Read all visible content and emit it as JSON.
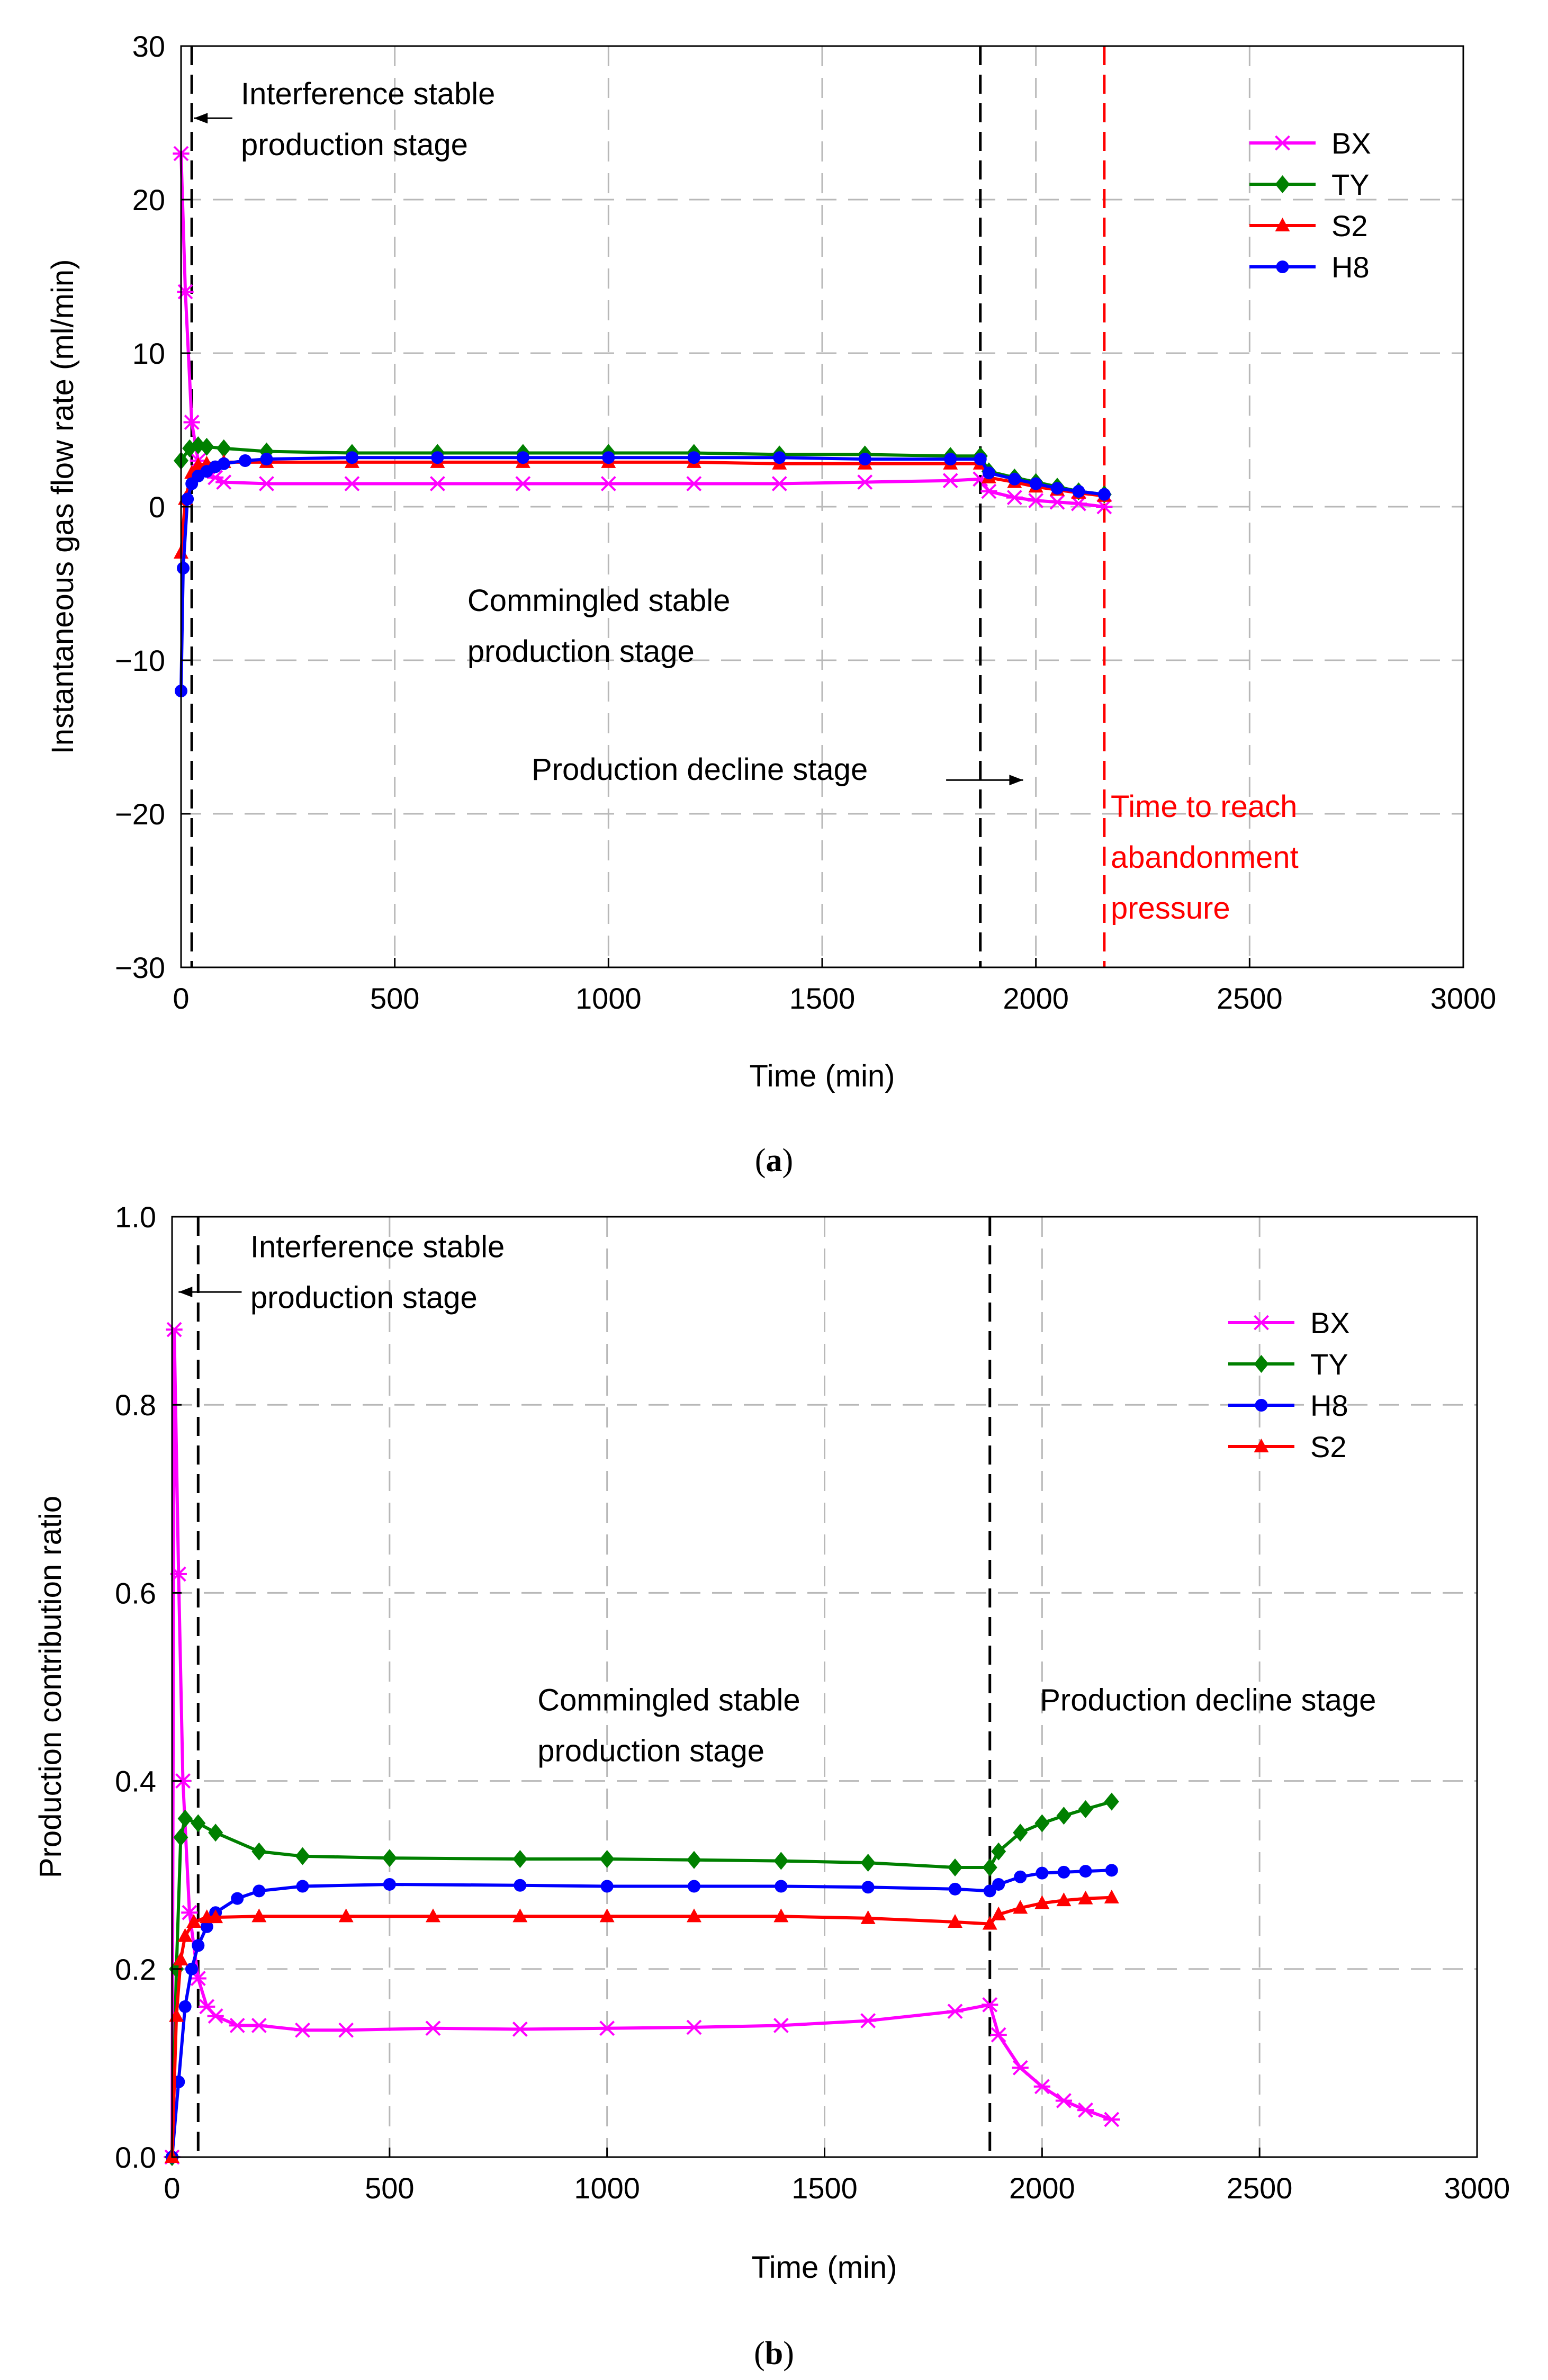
{
  "chart_data": [
    {
      "id": "a",
      "type": "line",
      "caption_letter": "a",
      "title": "",
      "xlabel": "Time (min)",
      "ylabel": "Instantaneous gas flow rate (ml/min)",
      "xlim": [
        0,
        3000
      ],
      "ylim": [
        -30,
        30
      ],
      "xticks": [
        0,
        500,
        1000,
        1500,
        2000,
        2500,
        3000
      ],
      "yticks": [
        -30,
        -20,
        -10,
        0,
        10,
        20,
        30
      ],
      "xtick_labels": [
        "0",
        "500",
        "1000",
        "1500",
        "2000",
        "2500",
        "3000"
      ],
      "ytick_labels": [
        "−30",
        "−20",
        "−10",
        "0",
        "10",
        "20",
        "30"
      ],
      "grid": true,
      "legend_position": "top-right",
      "series": [
        {
          "name": "BX",
          "color": "#ff00ff",
          "marker": "x",
          "x": [
            0,
            10,
            25,
            40,
            60,
            80,
            100,
            200,
            400,
            600,
            800,
            1000,
            1200,
            1400,
            1600,
            1800,
            1870,
            1890,
            1950,
            2000,
            2050,
            2100,
            2160
          ],
          "y": [
            23,
            14,
            5.5,
            3.0,
            2.2,
            1.9,
            1.6,
            1.5,
            1.5,
            1.5,
            1.5,
            1.5,
            1.5,
            1.5,
            1.6,
            1.7,
            1.8,
            1.0,
            0.6,
            0.4,
            0.3,
            0.2,
            0.0
          ]
        },
        {
          "name": "TY",
          "color": "#008000",
          "marker": "diamond",
          "x": [
            0,
            20,
            40,
            60,
            100,
            200,
            400,
            600,
            800,
            1000,
            1200,
            1400,
            1600,
            1800,
            1870,
            1890,
            1950,
            2000,
            2050,
            2100,
            2160
          ],
          "y": [
            3.0,
            3.8,
            4.0,
            3.9,
            3.8,
            3.6,
            3.5,
            3.5,
            3.5,
            3.5,
            3.5,
            3.4,
            3.4,
            3.3,
            3.3,
            2.3,
            1.9,
            1.6,
            1.3,
            1.0,
            0.8
          ]
        },
        {
          "name": "S2",
          "color": "#ff0000",
          "marker": "triangle",
          "x": [
            0,
            10,
            25,
            40,
            60,
            100,
            200,
            400,
            600,
            800,
            1000,
            1200,
            1400,
            1600,
            1800,
            1870,
            1890,
            1950,
            2000,
            2050,
            2100,
            2160
          ],
          "y": [
            -3.0,
            0.5,
            2.2,
            2.7,
            2.8,
            2.9,
            2.9,
            2.9,
            2.9,
            2.9,
            2.9,
            2.9,
            2.8,
            2.8,
            2.8,
            2.8,
            1.9,
            1.6,
            1.3,
            1.1,
            0.9,
            0.7
          ]
        },
        {
          "name": "H8",
          "color": "#0000ff",
          "marker": "circle",
          "x": [
            0,
            5,
            15,
            25,
            40,
            60,
            80,
            100,
            150,
            200,
            400,
            600,
            800,
            1000,
            1200,
            1400,
            1600,
            1800,
            1870,
            1890,
            1950,
            2000,
            2050,
            2100,
            2160
          ],
          "y": [
            -12,
            -4,
            0.5,
            1.5,
            2.0,
            2.3,
            2.6,
            2.8,
            3.0,
            3.1,
            3.2,
            3.2,
            3.2,
            3.2,
            3.2,
            3.2,
            3.1,
            3.1,
            3.1,
            2.2,
            1.8,
            1.5,
            1.2,
            1.0,
            0.8
          ]
        }
      ],
      "vlines": [
        {
          "x": 25,
          "color": "#000000"
        },
        {
          "x": 1870,
          "color": "#000000"
        },
        {
          "x": 2160,
          "color": "#ff0000"
        }
      ],
      "annotations": [
        {
          "lines": [
            "Interference stable",
            "production stage"
          ],
          "color": "#000000",
          "x": 140,
          "y": 26.2,
          "arrow_from_x": 120,
          "arrow_to_x": 30,
          "arrow_y": 25.3
        },
        {
          "lines": [
            "Commingled stable",
            "production stage"
          ],
          "color": "#000000",
          "x": 670,
          "y": -6.8
        },
        {
          "lines": [
            "Production decline stage"
          ],
          "color": "#000000",
          "x": 820,
          "y": -17.8,
          "arrow_from_x": 1790,
          "arrow_to_x": 1970,
          "arrow_y": -17.8
        },
        {
          "lines": [
            "Time to reach",
            "abandonment",
            "pressure"
          ],
          "color": "#ff0000",
          "x": 2175,
          "y": -20.2
        }
      ]
    },
    {
      "id": "b",
      "type": "line",
      "caption_letter": "b",
      "title": "",
      "xlabel": "Time (min)",
      "ylabel": "Production contribution ratio",
      "xlim": [
        0,
        3000
      ],
      "ylim": [
        0,
        1
      ],
      "xticks": [
        0,
        500,
        1000,
        1500,
        2000,
        2500,
        3000
      ],
      "yticks": [
        0,
        0.2,
        0.4,
        0.6,
        0.8,
        1.0
      ],
      "xtick_labels": [
        "0",
        "500",
        "1000",
        "1500",
        "2000",
        "2500",
        "3000"
      ],
      "ytick_labels": [
        "0.0",
        "0.2",
        "0.4",
        "0.6",
        "0.8",
        "1.0"
      ],
      "grid": true,
      "legend_position": "top-right",
      "series": [
        {
          "name": "BX",
          "color": "#ff00ff",
          "marker": "x",
          "x": [
            0,
            5,
            15,
            25,
            40,
            60,
            80,
            100,
            150,
            200,
            300,
            400,
            600,
            800,
            1000,
            1200,
            1400,
            1600,
            1800,
            1880,
            1900,
            1950,
            2000,
            2050,
            2100,
            2160
          ],
          "y": [
            0.0,
            0.88,
            0.62,
            0.4,
            0.26,
            0.19,
            0.16,
            0.15,
            0.14,
            0.14,
            0.135,
            0.135,
            0.137,
            0.136,
            0.137,
            0.138,
            0.14,
            0.145,
            0.155,
            0.162,
            0.13,
            0.095,
            0.075,
            0.06,
            0.05,
            0.04
          ]
        },
        {
          "name": "TY",
          "color": "#008000",
          "marker": "diamond",
          "x": [
            0,
            10,
            20,
            30,
            60,
            100,
            200,
            300,
            500,
            800,
            1000,
            1200,
            1400,
            1600,
            1800,
            1880,
            1900,
            1950,
            2000,
            2050,
            2100,
            2160
          ],
          "y": [
            0.0,
            0.2,
            0.34,
            0.36,
            0.355,
            0.345,
            0.325,
            0.32,
            0.318,
            0.317,
            0.317,
            0.316,
            0.315,
            0.313,
            0.308,
            0.308,
            0.325,
            0.345,
            0.355,
            0.363,
            0.37,
            0.378
          ]
        },
        {
          "name": "H8",
          "color": "#0000ff",
          "marker": "circle",
          "x": [
            0,
            15,
            30,
            45,
            60,
            80,
            100,
            150,
            200,
            300,
            500,
            800,
            1000,
            1200,
            1400,
            1600,
            1800,
            1880,
            1900,
            1950,
            2000,
            2050,
            2100,
            2160
          ],
          "y": [
            0.0,
            0.08,
            0.16,
            0.2,
            0.225,
            0.245,
            0.26,
            0.275,
            0.283,
            0.288,
            0.29,
            0.289,
            0.288,
            0.288,
            0.288,
            0.287,
            0.285,
            0.283,
            0.29,
            0.298,
            0.302,
            0.303,
            0.304,
            0.305
          ]
        },
        {
          "name": "S2",
          "color": "#ff0000",
          "marker": "triangle",
          "x": [
            0,
            10,
            20,
            30,
            50,
            80,
            100,
            200,
            400,
            600,
            800,
            1000,
            1200,
            1400,
            1600,
            1800,
            1880,
            1900,
            1950,
            2000,
            2050,
            2100,
            2160
          ],
          "y": [
            0.0,
            0.15,
            0.21,
            0.235,
            0.25,
            0.255,
            0.255,
            0.256,
            0.256,
            0.256,
            0.256,
            0.256,
            0.256,
            0.256,
            0.254,
            0.25,
            0.248,
            0.258,
            0.265,
            0.27,
            0.273,
            0.275,
            0.276
          ]
        }
      ],
      "vlines": [
        {
          "x": 60,
          "color": "#000000"
        },
        {
          "x": 1880,
          "color": "#000000"
        }
      ],
      "annotations": [
        {
          "lines": [
            "Interference stable",
            "production stage"
          ],
          "color": "#000000",
          "x": 180,
          "y": 0.957,
          "arrow_from_x": 160,
          "arrow_to_x": 15,
          "arrow_y": 0.92
        },
        {
          "lines": [
            "Commingled stable",
            "production stage"
          ],
          "color": "#000000",
          "x": 840,
          "y": 0.475
        },
        {
          "lines": [
            "Production decline stage"
          ],
          "color": "#000000",
          "x": 1995,
          "y": 0.475
        }
      ]
    }
  ]
}
